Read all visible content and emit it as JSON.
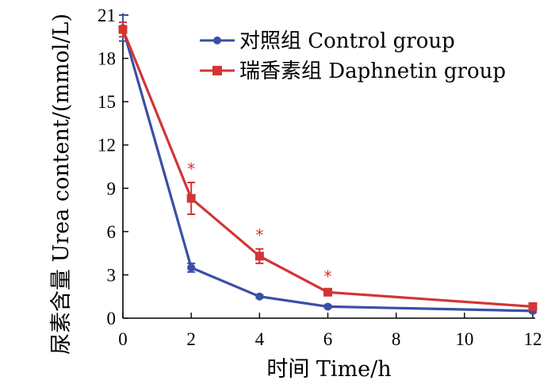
{
  "chart_data": {
    "type": "line",
    "xlabel": "时间 Time/h",
    "ylabel": "尿素含量 Urea content/(mmol/L)",
    "x_ticks": [
      "0",
      "2",
      "4",
      "6",
      "8",
      "10",
      "12"
    ],
    "y_ticks": [
      "0",
      "3",
      "6",
      "9",
      "12",
      "15",
      "18",
      "21"
    ],
    "xlim": [
      0,
      12
    ],
    "ylim": [
      0,
      21
    ],
    "grid": false,
    "legend_position": "top-right",
    "x": [
      0,
      2,
      4,
      6,
      12
    ],
    "series": [
      {
        "name": "对照组 Control group",
        "color": "#3a4fa6",
        "marker": "circle",
        "values": [
          20.1,
          3.5,
          1.5,
          0.8,
          0.5
        ],
        "errors": [
          0.9,
          0.3,
          0.1,
          0.1,
          0.1
        ]
      },
      {
        "name": "瑞香素组 Daphnetin group",
        "color": "#d23535",
        "marker": "square",
        "values": [
          20.0,
          8.3,
          4.3,
          1.8,
          0.8
        ],
        "errors": [
          0.5,
          1.1,
          0.5,
          0.15,
          0.1
        ]
      }
    ],
    "significance": [
      {
        "x": 2,
        "label": "*"
      },
      {
        "x": 4,
        "label": "*"
      },
      {
        "x": 6,
        "label": "*"
      }
    ]
  }
}
